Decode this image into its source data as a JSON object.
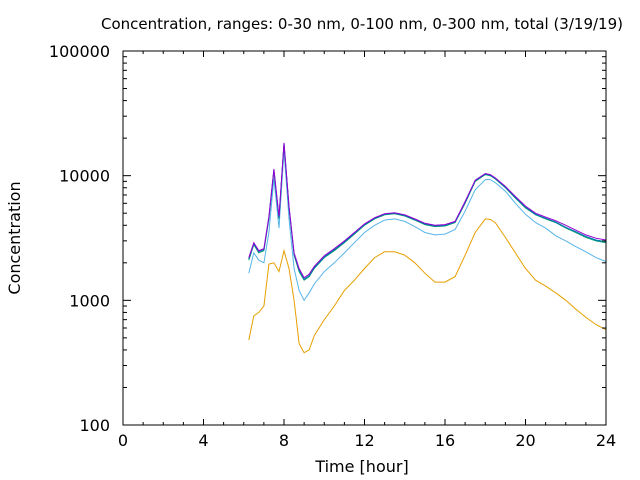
{
  "chart_data": {
    "type": "line",
    "title": "Concentration, ranges: 0-30 nm, 0-100 nm, 0-300 nm, total (3/19/19)",
    "xlabel": "Time [hour]",
    "ylabel": "Concentration",
    "xlim": [
      0,
      24
    ],
    "ylim": [
      100,
      100000
    ],
    "yscale": "log",
    "xticks": [
      0,
      4,
      8,
      12,
      16,
      20,
      24
    ],
    "yticks": [
      100,
      1000,
      10000,
      100000
    ],
    "xtick_labels": [
      "0",
      "4",
      "8",
      "12",
      "16",
      "20",
      "24"
    ],
    "ytick_labels": [
      "100",
      "1000",
      "10000",
      "100000"
    ],
    "grid": false,
    "legend": "none",
    "series": [
      {
        "color": "#e69f00",
        "x": [
          6.25,
          6.5,
          6.75,
          7.0,
          7.25,
          7.5,
          7.75,
          8.0,
          8.25,
          8.5,
          8.75,
          9.0,
          9.25,
          9.5,
          10.0,
          10.5,
          11.0,
          11.5,
          12.0,
          12.5,
          13.0,
          13.5,
          14.0,
          14.5,
          15.0,
          15.5,
          16.0,
          16.5,
          17.0,
          17.5,
          18.0,
          18.25,
          18.5,
          19.0,
          19.5,
          20.0,
          20.5,
          21.0,
          21.5,
          22.0,
          22.5,
          23.0,
          23.5,
          24.0
        ],
        "y": [
          480,
          750,
          800,
          900,
          1950,
          2000,
          1700,
          2500,
          1800,
          1000,
          450,
          380,
          400,
          520,
          700,
          900,
          1200,
          1450,
          1800,
          2200,
          2450,
          2450,
          2300,
          2000,
          1650,
          1400,
          1400,
          1550,
          2300,
          3500,
          4500,
          4450,
          4200,
          3200,
          2400,
          1800,
          1450,
          1300,
          1150,
          1000,
          850,
          730,
          640,
          580
        ]
      },
      {
        "color": "#56b4e9",
        "x": [
          6.25,
          6.5,
          6.75,
          7.0,
          7.25,
          7.5,
          7.75,
          8.0,
          8.25,
          8.5,
          8.75,
          9.0,
          9.25,
          9.5,
          10.0,
          10.5,
          11.0,
          11.5,
          12.0,
          12.5,
          13.0,
          13.5,
          14.0,
          14.5,
          15.0,
          15.5,
          16.0,
          16.5,
          17.0,
          17.5,
          18.0,
          18.25,
          18.5,
          19.0,
          19.5,
          20.0,
          20.5,
          21.0,
          21.5,
          22.0,
          22.5,
          23.0,
          23.5,
          24.0
        ],
        "y": [
          1650,
          2400,
          2100,
          2000,
          3500,
          9500,
          3800,
          16000,
          4500,
          1800,
          1200,
          1000,
          1150,
          1350,
          1700,
          2000,
          2400,
          2900,
          3500,
          4000,
          4400,
          4500,
          4300,
          3900,
          3500,
          3350,
          3400,
          3700,
          5200,
          7700,
          9300,
          9300,
          8800,
          7500,
          6000,
          4900,
          4200,
          3800,
          3300,
          3000,
          2700,
          2450,
          2200,
          2050
        ]
      },
      {
        "color": "#009e73",
        "x": [
          6.25,
          6.5,
          6.75,
          7.0,
          7.25,
          7.5,
          7.75,
          8.0,
          8.25,
          8.5,
          8.75,
          9.0,
          9.25,
          9.5,
          10.0,
          10.5,
          11.0,
          11.5,
          12.0,
          12.5,
          13.0,
          13.5,
          14.0,
          14.5,
          15.0,
          15.5,
          16.0,
          16.5,
          17.0,
          17.5,
          18.0,
          18.25,
          18.5,
          19.0,
          19.5,
          20.0,
          20.5,
          21.0,
          21.5,
          22.0,
          22.5,
          23.0,
          23.5,
          24.0
        ],
        "y": [
          2100,
          2800,
          2400,
          2500,
          4500,
          11000,
          4500,
          18000,
          5500,
          2300,
          1700,
          1450,
          1550,
          1800,
          2200,
          2500,
          2900,
          3400,
          4000,
          4500,
          4850,
          4950,
          4750,
          4400,
          4050,
          3900,
          3950,
          4200,
          6000,
          9000,
          10200,
          10000,
          9400,
          8000,
          6600,
          5500,
          4850,
          4500,
          4200,
          3800,
          3500,
          3200,
          3000,
          2900
        ]
      },
      {
        "color": "#0072b2",
        "x": [
          6.25,
          6.5,
          6.75,
          7.0,
          7.25,
          7.5,
          7.75,
          8.0,
          8.25,
          8.5,
          8.75,
          9.0,
          9.25,
          9.5,
          10.0,
          10.5,
          11.0,
          11.5,
          12.0,
          12.5,
          13.0,
          13.5,
          14.0,
          14.5,
          15.0,
          15.5,
          16.0,
          16.5,
          17.0,
          17.5,
          18.0,
          18.25,
          18.5,
          19.0,
          19.5,
          20.0,
          20.5,
          21.0,
          21.5,
          22.0,
          22.5,
          23.0,
          23.5,
          24.0
        ],
        "y": [
          2150,
          2850,
          2450,
          2550,
          4600,
          11100,
          4600,
          18100,
          5600,
          2350,
          1750,
          1480,
          1580,
          1830,
          2230,
          2550,
          2950,
          3450,
          4050,
          4550,
          4900,
          5000,
          4800,
          4450,
          4100,
          3950,
          4000,
          4250,
          6100,
          9100,
          10300,
          10100,
          9500,
          8100,
          6700,
          5600,
          4900,
          4550,
          4250,
          3850,
          3550,
          3250,
          3050,
          2950
        ]
      },
      {
        "color": "#9400d3",
        "x": [
          6.25,
          6.5,
          6.75,
          7.0,
          7.25,
          7.5,
          7.75,
          8.0,
          8.25,
          8.5,
          8.75,
          9.0,
          9.25,
          9.5,
          10.0,
          10.5,
          11.0,
          11.5,
          12.0,
          12.5,
          13.0,
          13.5,
          14.0,
          14.5,
          15.0,
          15.5,
          16.0,
          16.5,
          17.0,
          17.5,
          18.0,
          18.25,
          18.5,
          19.0,
          19.5,
          20.0,
          20.5,
          21.0,
          21.5,
          22.0,
          22.5,
          23.0,
          23.5,
          24.0
        ],
        "y": [
          2200,
          2900,
          2500,
          2600,
          4700,
          11300,
          4700,
          18300,
          5700,
          2400,
          1800,
          1520,
          1620,
          1870,
          2280,
          2600,
          3000,
          3500,
          4100,
          4600,
          4950,
          5050,
          4850,
          4500,
          4150,
          4000,
          4050,
          4300,
          6200,
          9200,
          10400,
          10200,
          9600,
          8200,
          6800,
          5700,
          5000,
          4650,
          4350,
          4000,
          3650,
          3350,
          3150,
          3050
        ]
      }
    ]
  }
}
